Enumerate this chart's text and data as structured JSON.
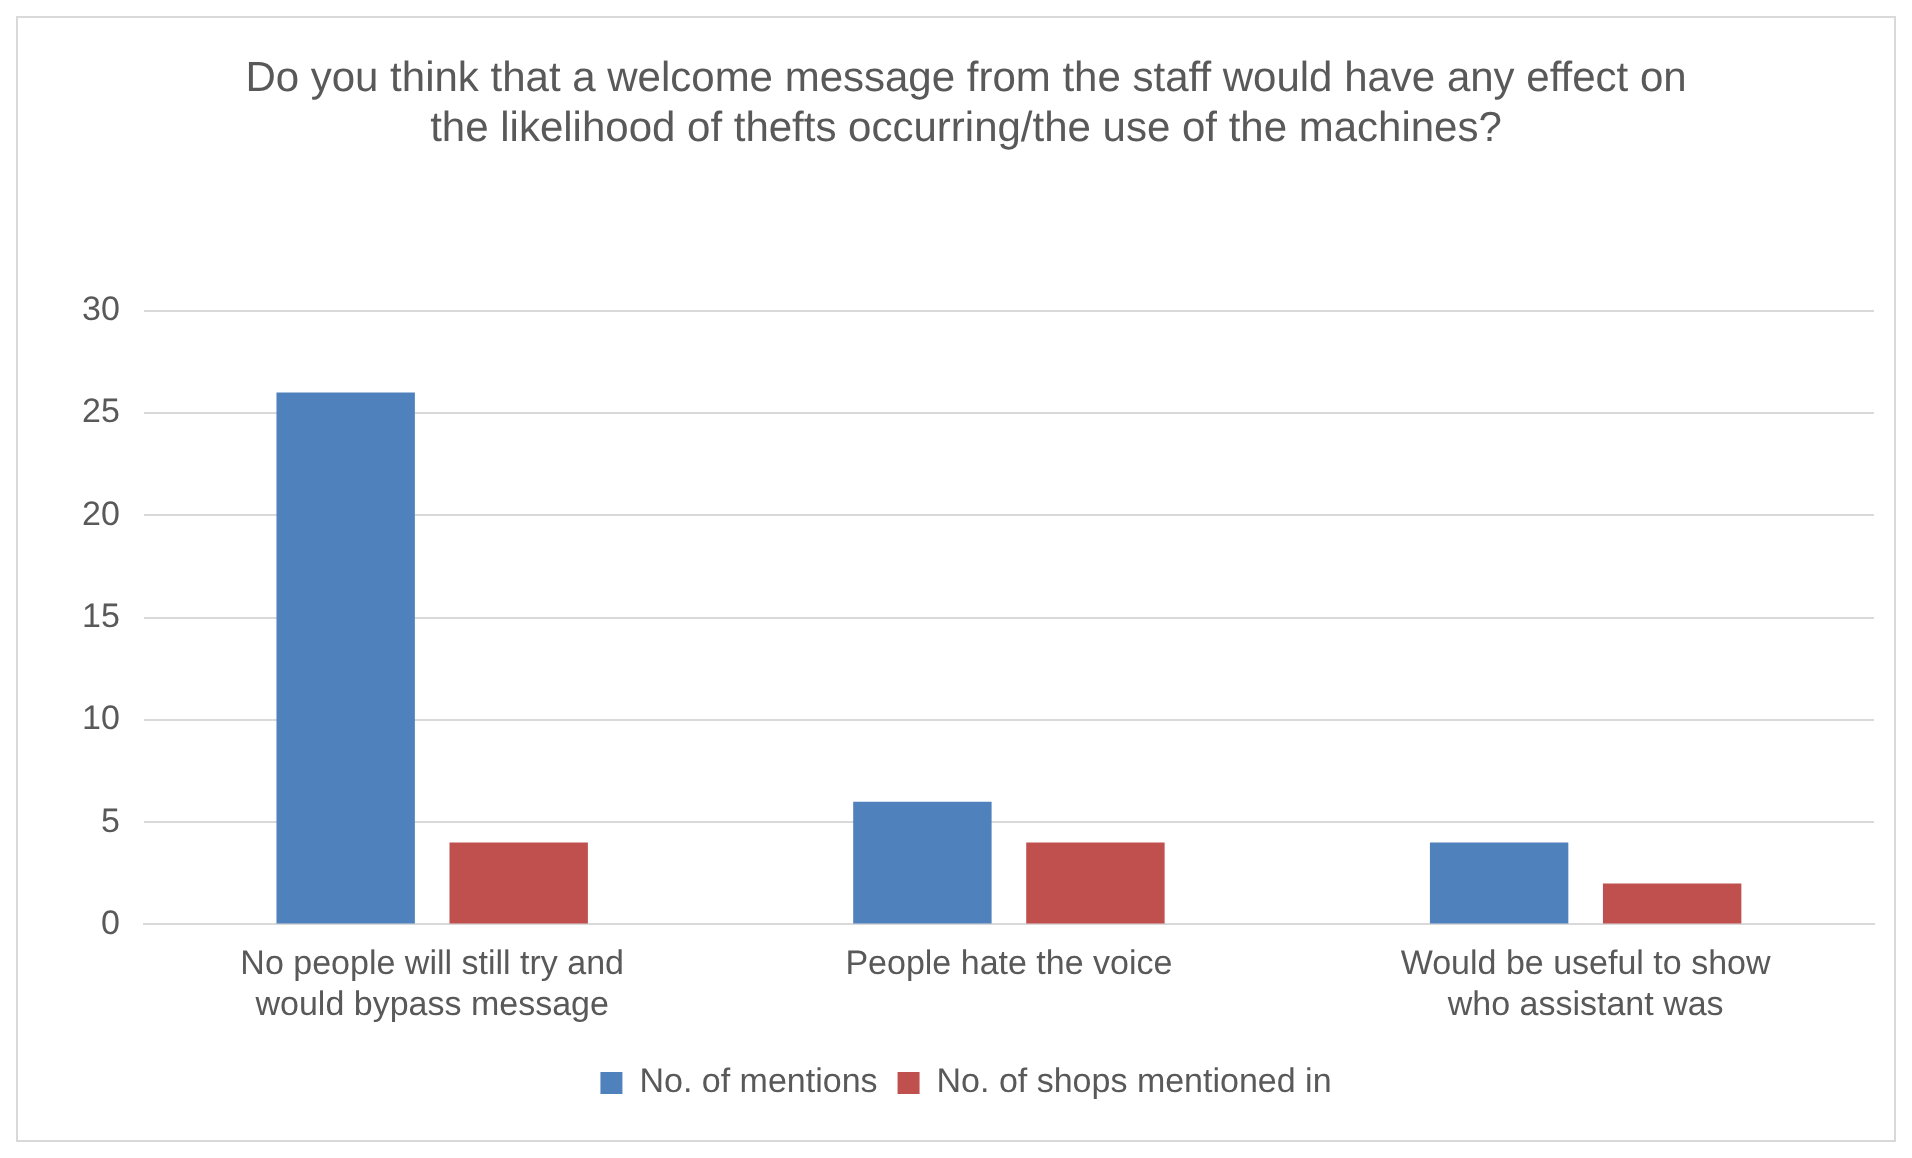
{
  "chart_data": {
    "type": "bar",
    "title": "Do you think that a welcome message from the staff would have any effect on the likelihood of thefts occurring/the use of the machines?",
    "categories": [
      "No people will still try and would bypass message",
      "People hate the voice",
      "Would be useful to show who assistant was"
    ],
    "series": [
      {
        "name": "No. of mentions",
        "color": "#4f81bd",
        "values": [
          26,
          6,
          4
        ]
      },
      {
        "name": "No. of shops mentioned in",
        "color": "#c0504d",
        "values": [
          4,
          4,
          2
        ]
      }
    ],
    "ylim": [
      0,
      30
    ],
    "yticks": [
      0,
      5,
      10,
      15,
      20,
      25,
      30
    ],
    "grid": "y",
    "legend": "bottom"
  }
}
